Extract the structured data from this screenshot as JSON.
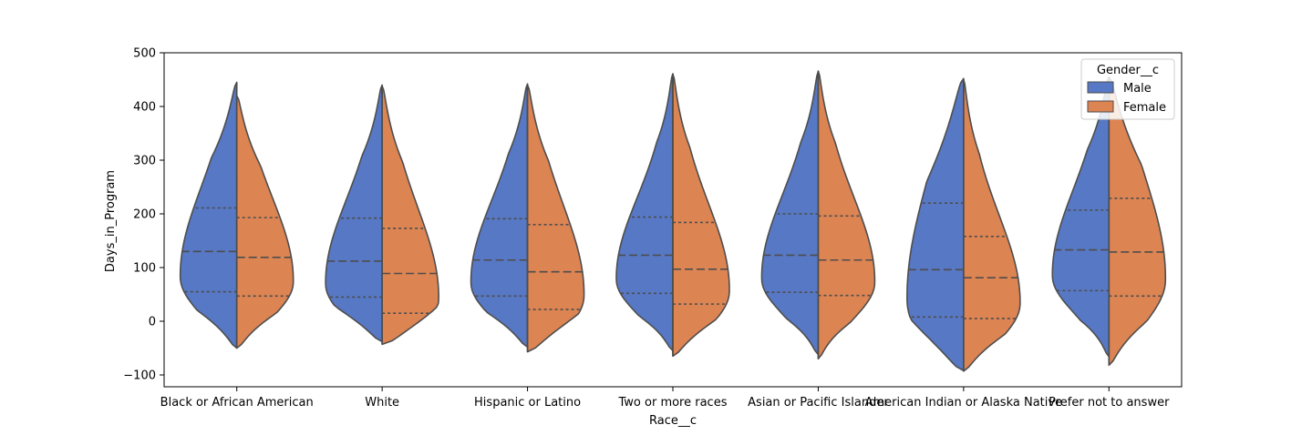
{
  "chart_data": {
    "type": "violin",
    "xlabel": "Race__c",
    "ylabel": "Days_in_Program",
    "ylim": [
      -120,
      500
    ],
    "yticks": [
      -100,
      0,
      100,
      200,
      300,
      400,
      500
    ],
    "grid": false,
    "legend": {
      "title": "Gender__c",
      "placement": "top-right",
      "entries": [
        {
          "name": "Male",
          "color": "#5778c4"
        },
        {
          "name": "Female",
          "color": "#dd8453"
        }
      ]
    },
    "categories": [
      "Black or African American",
      "White",
      "Hispanic or Latino",
      "Two or more races",
      "Asian or Pacific Islander",
      "American Indian or Alaska Native",
      "Prefer not to answer"
    ],
    "series": [
      {
        "name": "Male",
        "quartiles": [
          [
            55,
            130,
            211
          ],
          [
            45,
            112,
            192
          ],
          [
            47,
            114,
            191
          ],
          [
            52,
            123,
            194
          ],
          [
            54,
            123,
            200
          ],
          [
            8,
            96,
            220
          ],
          [
            57,
            133,
            207
          ]
        ],
        "range": [
          [
            -50,
            445
          ],
          [
            -38,
            440
          ],
          [
            -48,
            442
          ],
          [
            -55,
            461
          ],
          [
            -62,
            465
          ],
          [
            -92,
            452
          ],
          [
            -66,
            455
          ]
        ]
      },
      {
        "name": "Female",
        "quartiles": [
          [
            47,
            119,
            193
          ],
          [
            15,
            89,
            173
          ],
          [
            22,
            92,
            180
          ],
          [
            32,
            97,
            184
          ],
          [
            48,
            114,
            196
          ],
          [
            5,
            81,
            158
          ],
          [
            47,
            129,
            229
          ]
        ],
        "range": [
          [
            -50,
            420
          ],
          [
            -43,
            438
          ],
          [
            -57,
            440
          ],
          [
            -65,
            460
          ],
          [
            -70,
            466
          ],
          [
            -93,
            450
          ],
          [
            -82,
            455
          ]
        ]
      }
    ]
  }
}
